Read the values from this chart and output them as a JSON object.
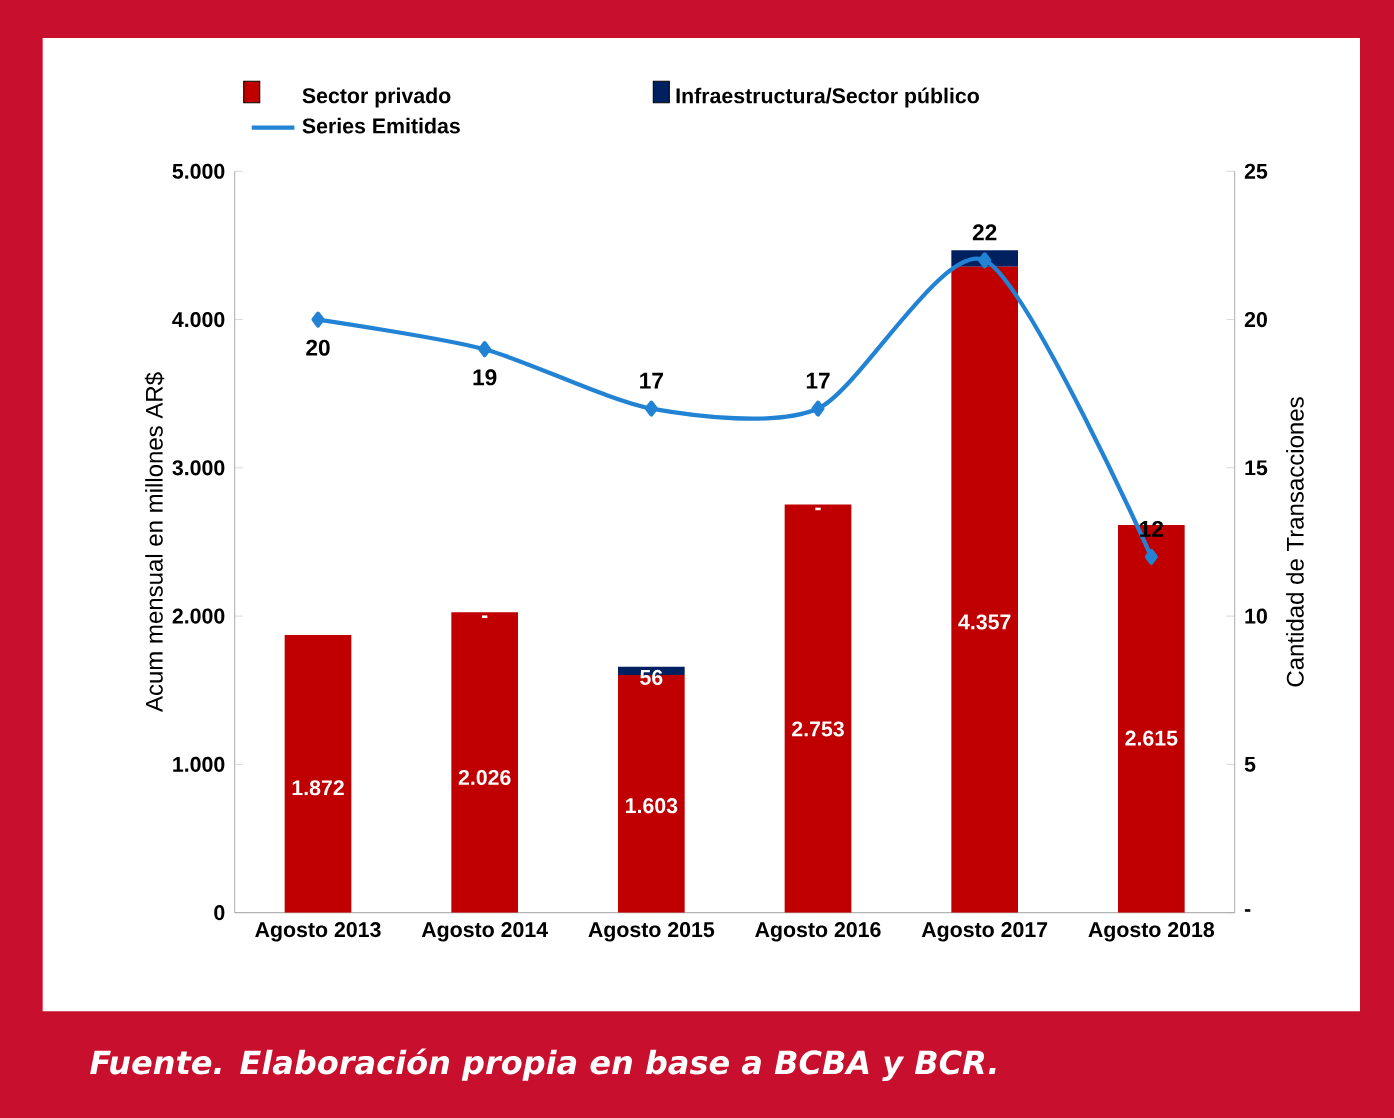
{
  "chart_data": {
    "type": "bar",
    "stacked": true,
    "categories": [
      "Agosto 2013",
      "Agosto 2014",
      "Agosto 2015",
      "Agosto 2016",
      "Agosto 2017",
      "Agosto 2018"
    ],
    "ylabel": "Acum mensual en millones AR$",
    "y2label": "Cantidad de Transacciones",
    "ylim": [
      0,
      5000
    ],
    "yticks": [
      0,
      {
        "value": 1000,
        "label": "1.000"
      },
      {
        "value": 2000,
        "label": "2.000"
      },
      {
        "value": 3000,
        "label": "3.000"
      },
      {
        "value": 4000,
        "label": "4.000"
      },
      {
        "value": 5000,
        "label": "5.000"
      }
    ],
    "y2lim": [
      0,
      25
    ],
    "y2ticks": [
      {
        "value": 0,
        "label": "-"
      },
      5,
      10,
      15,
      20,
      25
    ],
    "legend": "top",
    "grid": false,
    "annotations": [
      "Fuente. Elaboración propia en base a BCBA y BCR."
    ],
    "series": [
      {
        "name": "Sector privado",
        "color": "#c00000",
        "values": [
          1872,
          2026,
          1603,
          2753,
          4357,
          2615
        ],
        "value_labels": [
          "1.872",
          "2.026",
          "1.603",
          "2.753",
          "4.357",
          "2.615"
        ]
      },
      {
        "name": "Infraestructura/Sector público",
        "color": "#002060",
        "values": [
          0,
          0,
          56,
          0,
          110,
          0
        ],
        "value_labels": [
          null,
          "-",
          "56",
          "-",
          null,
          null
        ]
      },
      {
        "name": "Series Emitidas",
        "type": "line",
        "axis": "y2",
        "color": "#2283d4",
        "marker": "diamond",
        "values": [
          20,
          19,
          17,
          17,
          22,
          12
        ],
        "value_labels": [
          "20",
          "19",
          "17",
          "17",
          "22",
          "12"
        ]
      }
    ]
  }
}
